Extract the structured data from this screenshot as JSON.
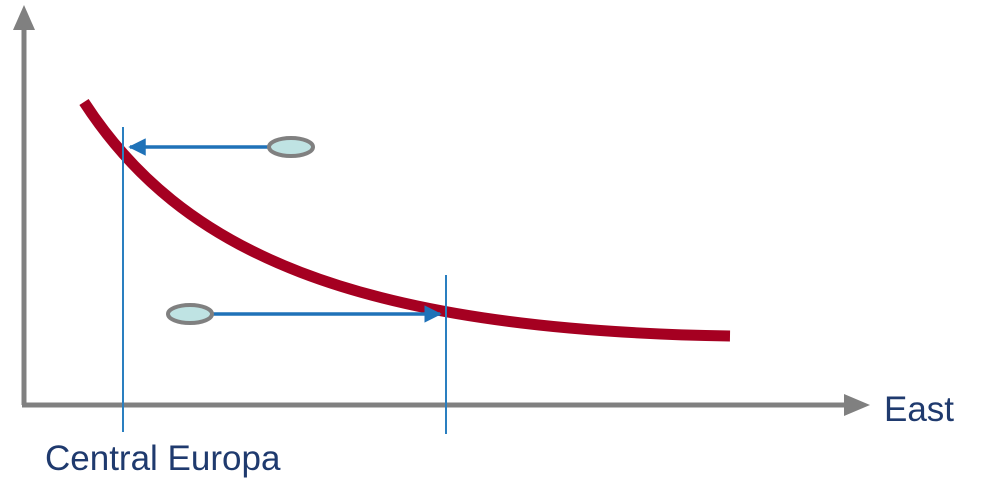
{
  "labels": {
    "x_axis": "East",
    "marker_left": "Central Europa"
  },
  "colors": {
    "axis": "#808080",
    "curve": "#a50021",
    "arrow": "#1f72b8",
    "guide_line": "#2a7fc0",
    "handle_fill": "#bfe3e3",
    "handle_stroke": "#808080",
    "text": "#1f3a6e"
  },
  "icons": {
    "x_axis_head": "arrow-right-icon",
    "y_axis_head": "arrow-up-icon",
    "upper_arrow": "arrow-left-icon",
    "lower_arrow": "arrow-right-icon"
  }
}
